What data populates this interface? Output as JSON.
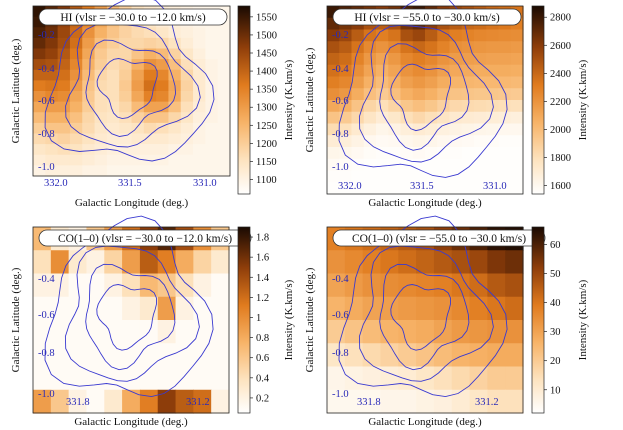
{
  "chart_data": [
    {
      "type": "heatmap",
      "title": "HI (vlsr = −30.0 to −12.0 km/s)",
      "xlabel": "Galactic Longitude (deg.)",
      "ylabel": "Galactic Latitude (deg.)",
      "colorbar_label": "Intensity (K.km/s)",
      "x_ticks": [
        "332.0",
        "331.5",
        "331.0"
      ],
      "y_ticks": [
        "-0.2",
        "-0.4",
        "-0.6",
        "-0.8",
        "-1.0"
      ],
      "colorbar_ticks": [
        "1550",
        "1500",
        "1450",
        "1400",
        "1350",
        "1300",
        "1250",
        "1200",
        "1150",
        "1100"
      ],
      "colorbar_range": [
        1060,
        1580
      ],
      "grid_shape": [
        16,
        16
      ],
      "intensity_grid": [
        [
          1560,
          1520,
          1480,
          1420,
          1360,
          1300,
          1240,
          1190,
          1150,
          1130,
          1120,
          1110,
          1100,
          1090,
          1090,
          1090
        ],
        [
          1550,
          1510,
          1460,
          1400,
          1340,
          1280,
          1230,
          1190,
          1160,
          1140,
          1120,
          1110,
          1100,
          1090,
          1090,
          1090
        ],
        [
          1530,
          1500,
          1450,
          1390,
          1320,
          1260,
          1220,
          1190,
          1170,
          1160,
          1140,
          1120,
          1110,
          1100,
          1090,
          1090
        ],
        [
          1510,
          1480,
          1440,
          1380,
          1300,
          1230,
          1200,
          1180,
          1180,
          1190,
          1180,
          1150,
          1120,
          1100,
          1090,
          1090
        ],
        [
          1480,
          1460,
          1420,
          1360,
          1280,
          1210,
          1180,
          1180,
          1220,
          1260,
          1240,
          1190,
          1140,
          1110,
          1090,
          1090
        ],
        [
          1440,
          1430,
          1400,
          1340,
          1260,
          1200,
          1170,
          1190,
          1260,
          1320,
          1300,
          1230,
          1160,
          1120,
          1100,
          1090
        ],
        [
          1400,
          1400,
          1380,
          1320,
          1240,
          1180,
          1160,
          1200,
          1290,
          1360,
          1340,
          1260,
          1180,
          1130,
          1100,
          1090
        ],
        [
          1360,
          1370,
          1360,
          1300,
          1220,
          1170,
          1160,
          1210,
          1300,
          1380,
          1360,
          1280,
          1190,
          1130,
          1100,
          1090
        ],
        [
          1320,
          1340,
          1330,
          1280,
          1210,
          1160,
          1160,
          1200,
          1280,
          1350,
          1340,
          1270,
          1180,
          1130,
          1100,
          1090
        ],
        [
          1280,
          1300,
          1300,
          1260,
          1200,
          1160,
          1150,
          1180,
          1240,
          1290,
          1290,
          1230,
          1160,
          1120,
          1100,
          1090
        ],
        [
          1240,
          1260,
          1260,
          1230,
          1180,
          1150,
          1140,
          1160,
          1190,
          1220,
          1220,
          1180,
          1140,
          1110,
          1100,
          1090
        ],
        [
          1200,
          1220,
          1220,
          1200,
          1170,
          1140,
          1130,
          1140,
          1150,
          1170,
          1160,
          1140,
          1120,
          1100,
          1090,
          1090
        ],
        [
          1170,
          1180,
          1190,
          1170,
          1150,
          1130,
          1120,
          1120,
          1130,
          1130,
          1130,
          1120,
          1110,
          1100,
          1090,
          1090
        ],
        [
          1140,
          1150,
          1160,
          1150,
          1130,
          1120,
          1110,
          1110,
          1110,
          1110,
          1110,
          1100,
          1100,
          1090,
          1090,
          1090
        ],
        [
          1120,
          1130,
          1130,
          1130,
          1120,
          1110,
          1100,
          1100,
          1100,
          1100,
          1100,
          1090,
          1090,
          1090,
          1090,
          1090
        ],
        [
          1100,
          1110,
          1110,
          1110,
          1100,
          1100,
          1090,
          1090,
          1090,
          1090,
          1090,
          1090,
          1090,
          1090,
          1090,
          1090
        ]
      ]
    },
    {
      "type": "heatmap",
      "title": "HI (vlsr = −55.0 to −30.0 km/s)",
      "xlabel": "Galactic Longitude (deg.)",
      "ylabel": "Galactic Latitude (deg.)",
      "colorbar_label": "Intensity (K.km/s)",
      "x_ticks": [
        "332.0",
        "331.5",
        "331.0"
      ],
      "y_ticks": [
        "-0.2",
        "-0.4",
        "-0.6",
        "-0.8",
        "-1.0"
      ],
      "colorbar_ticks": [
        "2800",
        "2600",
        "2400",
        "2200",
        "2000",
        "1800",
        "1600"
      ],
      "colorbar_range": [
        1540,
        2880
      ],
      "grid_shape": [
        16,
        16
      ],
      "intensity_grid": [
        [
          2800,
          2750,
          2700,
          2650,
          2600,
          2650,
          2750,
          2800,
          2700,
          2600,
          2550,
          2500,
          2450,
          2400,
          2380,
          2350
        ],
        [
          2700,
          2650,
          2600,
          2500,
          2450,
          2500,
          2650,
          2700,
          2600,
          2500,
          2450,
          2400,
          2380,
          2350,
          2330,
          2300
        ],
        [
          2600,
          2550,
          2450,
          2350,
          2300,
          2350,
          2500,
          2550,
          2450,
          2350,
          2300,
          2280,
          2260,
          2250,
          2240,
          2230
        ],
        [
          2500,
          2450,
          2350,
          2250,
          2200,
          2250,
          2350,
          2400,
          2350,
          2280,
          2220,
          2200,
          2190,
          2180,
          2180,
          2170
        ],
        [
          2420,
          2380,
          2280,
          2180,
          2120,
          2180,
          2260,
          2300,
          2260,
          2200,
          2160,
          2150,
          2140,
          2130,
          2130,
          2120
        ],
        [
          2360,
          2320,
          2220,
          2120,
          2060,
          2120,
          2200,
          2240,
          2200,
          2140,
          2100,
          2090,
          2080,
          2080,
          2080,
          2070
        ],
        [
          2300,
          2260,
          2160,
          2060,
          2000,
          2060,
          2140,
          2180,
          2140,
          2080,
          2040,
          2030,
          2020,
          2020,
          2020,
          2010
        ],
        [
          2220,
          2180,
          2080,
          1980,
          1920,
          1980,
          2060,
          2100,
          2060,
          2000,
          1960,
          1950,
          1940,
          1940,
          1930,
          1920
        ],
        [
          2100,
          2060,
          1960,
          1860,
          1800,
          1860,
          1940,
          1980,
          1940,
          1880,
          1840,
          1830,
          1820,
          1810,
          1800,
          1790
        ],
        [
          1960,
          1920,
          1840,
          1760,
          1700,
          1740,
          1800,
          1840,
          1800,
          1760,
          1720,
          1710,
          1700,
          1690,
          1680,
          1670
        ],
        [
          1820,
          1790,
          1720,
          1660,
          1620,
          1640,
          1680,
          1710,
          1690,
          1660,
          1640,
          1630,
          1620,
          1610,
          1600,
          1600
        ],
        [
          1700,
          1680,
          1640,
          1600,
          1580,
          1590,
          1610,
          1630,
          1620,
          1600,
          1590,
          1580,
          1570,
          1570,
          1560,
          1560
        ],
        [
          1620,
          1610,
          1590,
          1570,
          1560,
          1560,
          1570,
          1580,
          1570,
          1560,
          1560,
          1550,
          1550,
          1550,
          1550,
          1550
        ],
        [
          1580,
          1570,
          1560,
          1550,
          1550,
          1550,
          1550,
          1550,
          1550,
          1550,
          1550,
          1550,
          1550,
          1550,
          1550,
          1550
        ],
        [
          1560,
          1560,
          1550,
          1550,
          1550,
          1550,
          1550,
          1550,
          1550,
          1550,
          1550,
          1550,
          1550,
          1550,
          1550,
          1550
        ],
        [
          1550,
          1550,
          1550,
          1550,
          1550,
          1550,
          1550,
          1550,
          1550,
          1550,
          1550,
          1550,
          1550,
          1550,
          1550,
          1550
        ]
      ]
    },
    {
      "type": "heatmap",
      "title": "CO(1–0) (vlsr = −30.0 to −12.0 km/s)",
      "xlabel": "Galactic Longitude (deg.)",
      "ylabel": "Galactic Latitude (deg.)",
      "colorbar_label": "Intensity (K.km/s)",
      "x_ticks": [
        "331.8",
        "331.2"
      ],
      "y_ticks": [
        "-0.4",
        "-0.6",
        "-0.8",
        "-1.0"
      ],
      "colorbar_ticks": [
        "1.8",
        "1.6",
        "1.4",
        "1.2",
        "1",
        "0.8",
        "0.6",
        "0.4",
        "0.2"
      ],
      "colorbar_range": [
        0.05,
        1.9
      ],
      "grid_shape": [
        8,
        11
      ],
      "intensity_grid": [
        [
          0.7,
          0.3,
          0.2,
          0.6,
          0.9,
          1.2,
          1.5,
          1.7,
          1.4,
          1.0,
          0.6
        ],
        [
          0.4,
          1.0,
          0.3,
          0.2,
          0.5,
          0.9,
          1.3,
          1.1,
          0.8,
          0.5,
          0.3
        ],
        [
          0.2,
          0.2,
          0.1,
          0.1,
          0.2,
          0.4,
          0.7,
          0.6,
          0.4,
          0.2,
          0.1
        ],
        [
          0.1,
          0.1,
          0.1,
          0.1,
          0.1,
          0.2,
          0.3,
          0.9,
          0.2,
          0.1,
          0.1
        ],
        [
          0.1,
          0.1,
          0.1,
          0.1,
          0.1,
          0.1,
          0.1,
          0.2,
          0.1,
          0.1,
          0.1
        ],
        [
          0.1,
          0.1,
          0.1,
          0.1,
          0.1,
          0.1,
          0.1,
          0.1,
          0.1,
          0.1,
          0.1
        ],
        [
          0.1,
          0.1,
          0.1,
          0.1,
          0.1,
          0.1,
          0.1,
          0.1,
          0.1,
          0.1,
          0.1
        ],
        [
          0.9,
          0.6,
          0.2,
          0.1,
          0.3,
          0.8,
          1.1,
          1.5,
          1.3,
          1.2,
          0.2
        ]
      ]
    },
    {
      "type": "heatmap",
      "title": "CO(1–0) (vlsr = −55.0 to −30.0 km/s)",
      "xlabel": "Galactic Longitude (deg.)",
      "ylabel": "Galactic Latitude (deg.)",
      "colorbar_label": "Intensity (K.km/s)",
      "x_ticks": [
        "331.8",
        "331.2"
      ],
      "y_ticks": [
        "-0.4",
        "-0.6",
        "-0.8",
        "-1.0"
      ],
      "colorbar_ticks": [
        "60",
        "50",
        "40",
        "30",
        "20",
        "10"
      ],
      "colorbar_range": [
        2,
        66
      ],
      "grid_shape": [
        8,
        11
      ],
      "intensity_grid": [
        [
          38,
          40,
          42,
          44,
          46,
          48,
          52,
          56,
          60,
          64,
          65
        ],
        [
          34,
          36,
          38,
          40,
          42,
          44,
          46,
          48,
          50,
          54,
          56
        ],
        [
          30,
          32,
          34,
          35,
          36,
          37,
          38,
          40,
          42,
          46,
          48
        ],
        [
          26,
          28,
          30,
          31,
          32,
          33,
          34,
          36,
          38,
          40,
          42
        ],
        [
          20,
          22,
          24,
          26,
          27,
          28,
          30,
          32,
          33,
          34,
          34
        ],
        [
          12,
          14,
          16,
          18,
          20,
          22,
          24,
          26,
          27,
          28,
          28
        ],
        [
          6,
          7,
          8,
          9,
          10,
          12,
          14,
          16,
          18,
          20,
          20
        ],
        [
          5,
          5,
          5,
          6,
          6,
          7,
          8,
          10,
          12,
          14,
          14
        ]
      ]
    }
  ]
}
